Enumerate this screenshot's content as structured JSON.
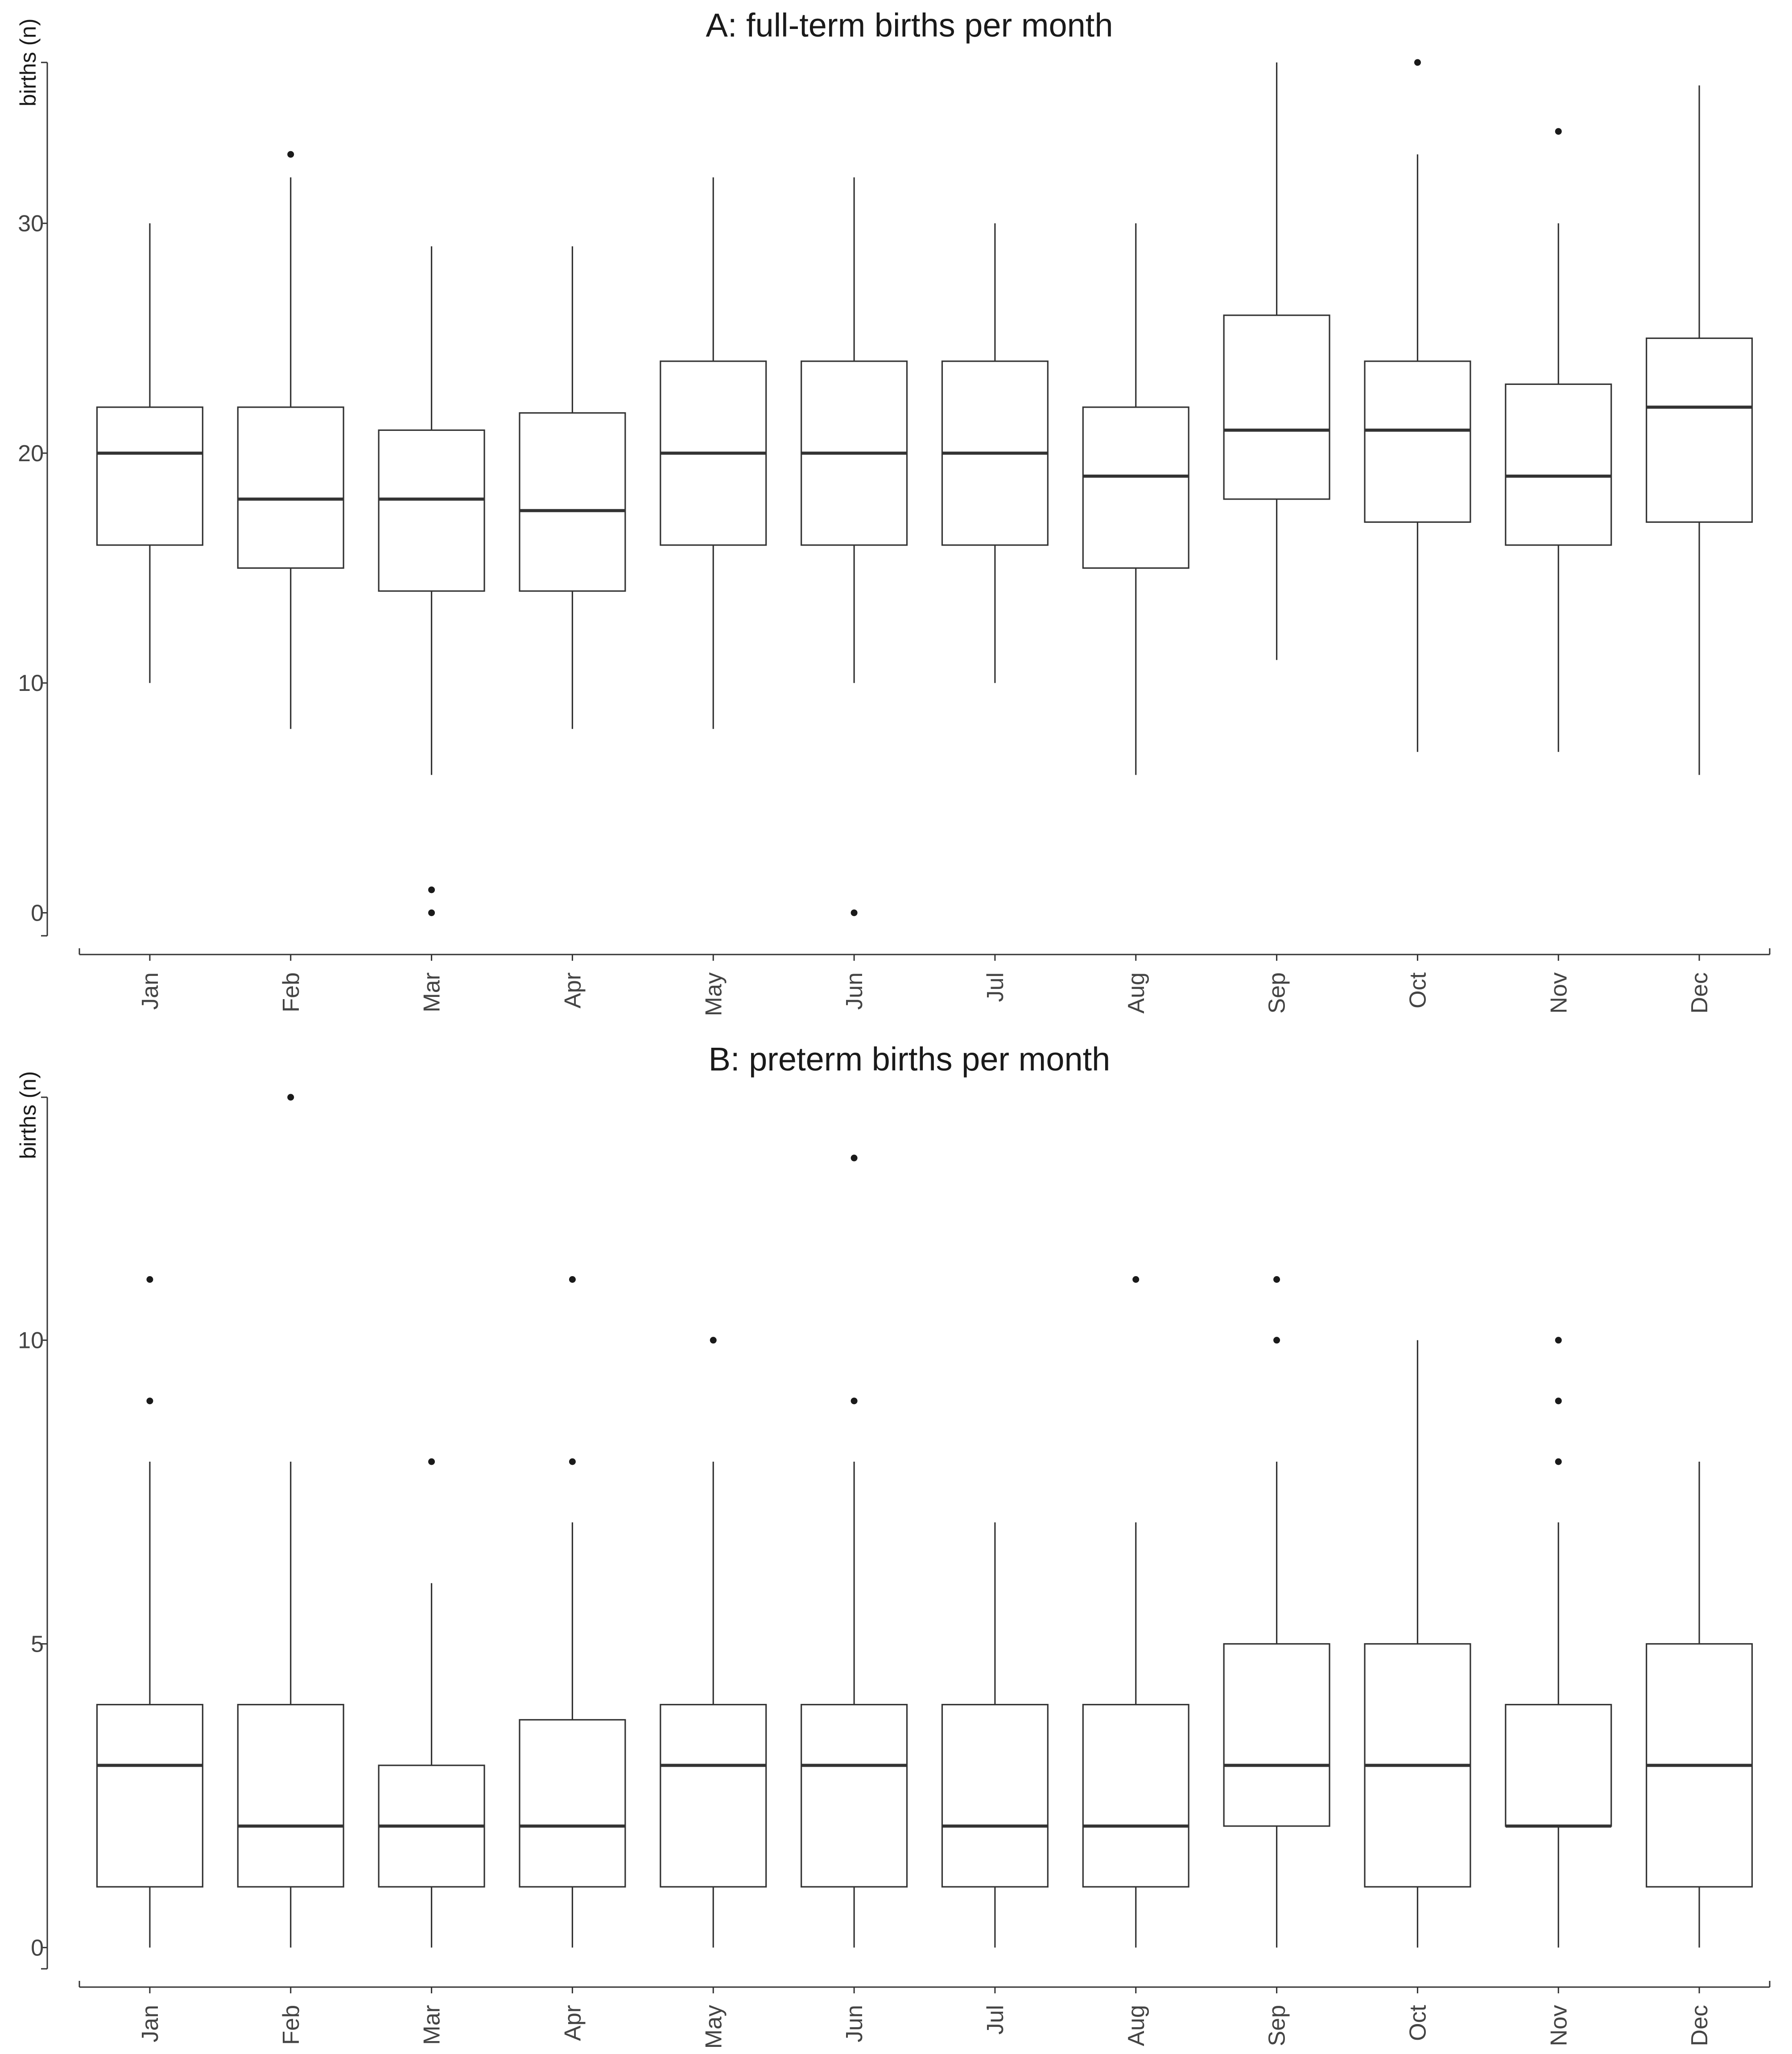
{
  "chart_data": [
    {
      "type": "box",
      "title": "A: full-term births per month",
      "ylabel": "births (n)",
      "xlabel": "",
      "ylim": [
        -1,
        37
      ],
      "yticks": [
        0,
        10,
        20,
        30
      ],
      "categories": [
        "Jan",
        "Feb",
        "Mar",
        "Apr",
        "May",
        "Jun",
        "Jul",
        "Aug",
        "Sep",
        "Oct",
        "Nov",
        "Dec"
      ],
      "boxes": [
        {
          "q1": 16,
          "median": 20,
          "q3": 22,
          "low": 10,
          "high": 30,
          "outliers": []
        },
        {
          "q1": 15,
          "median": 18,
          "q3": 22,
          "low": 8,
          "high": 32,
          "outliers": [
            33
          ]
        },
        {
          "q1": 14,
          "median": 18,
          "q3": 21,
          "low": 6,
          "high": 29,
          "outliers": [
            1,
            0
          ]
        },
        {
          "q1": 14,
          "median": 17.5,
          "q3": 21.75,
          "low": 8,
          "high": 29,
          "outliers": []
        },
        {
          "q1": 16,
          "median": 20,
          "q3": 24,
          "low": 8,
          "high": 32,
          "outliers": []
        },
        {
          "q1": 16,
          "median": 20,
          "q3": 24,
          "low": 10,
          "high": 32,
          "outliers": [
            0
          ]
        },
        {
          "q1": 16,
          "median": 20,
          "q3": 24,
          "low": 10,
          "high": 30,
          "outliers": []
        },
        {
          "q1": 15,
          "median": 19,
          "q3": 22,
          "low": 6,
          "high": 30,
          "outliers": []
        },
        {
          "q1": 18,
          "median": 21,
          "q3": 26,
          "low": 11,
          "high": 37,
          "outliers": []
        },
        {
          "q1": 17,
          "median": 21,
          "q3": 24,
          "low": 7,
          "high": 33,
          "outliers": [
            37
          ]
        },
        {
          "q1": 16,
          "median": 19,
          "q3": 23,
          "low": 7,
          "high": 30,
          "outliers": [
            34
          ]
        },
        {
          "q1": 17,
          "median": 22,
          "q3": 25,
          "low": 6,
          "high": 36,
          "outliers": []
        }
      ]
    },
    {
      "type": "box",
      "title": "B: preterm births per month",
      "ylabel": "births (n)",
      "xlabel": "",
      "ylim": [
        -0.35,
        14
      ],
      "yticks": [
        0,
        5,
        10
      ],
      "categories": [
        "Jan",
        "Feb",
        "Mar",
        "Apr",
        "May",
        "Jun",
        "Jul",
        "Aug",
        "Sep",
        "Oct",
        "Nov",
        "Dec"
      ],
      "boxes": [
        {
          "q1": 1,
          "median": 3,
          "q3": 4,
          "low": 0,
          "high": 8,
          "outliers": [
            11,
            9
          ]
        },
        {
          "q1": 1,
          "median": 2,
          "q3": 4,
          "low": 0,
          "high": 8,
          "outliers": [
            14
          ]
        },
        {
          "q1": 1,
          "median": 2,
          "q3": 3,
          "low": 0,
          "high": 6,
          "outliers": [
            8
          ]
        },
        {
          "q1": 1,
          "median": 2,
          "q3": 3.75,
          "low": 0,
          "high": 7,
          "outliers": [
            11,
            8
          ]
        },
        {
          "q1": 1,
          "median": 3,
          "q3": 4,
          "low": 0,
          "high": 8,
          "outliers": [
            10
          ]
        },
        {
          "q1": 1,
          "median": 3,
          "q3": 4,
          "low": 0,
          "high": 8,
          "outliers": [
            13,
            9
          ]
        },
        {
          "q1": 1,
          "median": 2,
          "q3": 4,
          "low": 0,
          "high": 7,
          "outliers": []
        },
        {
          "q1": 1,
          "median": 2,
          "q3": 4,
          "low": 0,
          "high": 7,
          "outliers": [
            11
          ]
        },
        {
          "q1": 2,
          "median": 3,
          "q3": 5,
          "low": 0,
          "high": 8,
          "outliers": [
            11,
            10
          ]
        },
        {
          "q1": 1,
          "median": 3,
          "q3": 5,
          "low": 0,
          "high": 10,
          "outliers": []
        },
        {
          "q1": 2,
          "median": 2,
          "q3": 4,
          "low": 0,
          "high": 7,
          "outliers": [
            10,
            9,
            8
          ]
        },
        {
          "q1": 1,
          "median": 3,
          "q3": 5,
          "low": 0,
          "high": 8,
          "outliers": []
        }
      ]
    }
  ]
}
